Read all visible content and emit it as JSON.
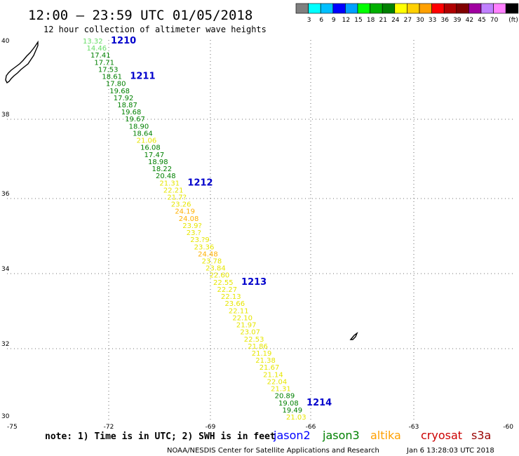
{
  "header": {
    "title": "12:00 – 23:59 UTC 01/05/2018",
    "subtitle": "12 hour collection of altimeter wave heights"
  },
  "legend": {
    "colors": [
      "#7f7f7f",
      "#00ffff",
      "#00bfff",
      "#0000ff",
      "#00a0ff",
      "#00ff00",
      "#00b000",
      "#008000",
      "#ffff00",
      "#ffd000",
      "#ffa000",
      "#ff0000",
      "#b00000",
      "#800000",
      "#a000a0",
      "#c080ff",
      "#ff80ff",
      "#000000"
    ],
    "labels": [
      "3",
      "6",
      "9",
      "12",
      "15",
      "18",
      "21",
      "24",
      "27",
      "30",
      "33",
      "36",
      "39",
      "42",
      "45",
      "70"
    ],
    "unit": "(ft)"
  },
  "map": {
    "lat_ticks": [
      "40",
      "38",
      "36",
      "34",
      "32",
      "30"
    ],
    "lon_ticks": [
      "-75",
      "-72",
      "-69",
      "-66",
      "-63",
      "-60"
    ],
    "lat_range": [
      30,
      40
    ],
    "lon_range": [
      -75,
      -60
    ],
    "grid": "dotted"
  },
  "track": {
    "markers": [
      {
        "label": "1210",
        "color": "#0000cc"
      },
      {
        "label": "1211",
        "color": "#0000cc"
      },
      {
        "label": "1212",
        "color": "#0000cc"
      },
      {
        "label": "1213",
        "color": "#0000cc"
      },
      {
        "label": "1214",
        "color": "#0000cc"
      }
    ],
    "points": [
      {
        "v": "13.32",
        "c": "#66dd66"
      },
      {
        "v": "14.46",
        "c": "#66dd66"
      },
      {
        "v": "17.41",
        "c": "#008000"
      },
      {
        "v": "17.71",
        "c": "#008000"
      },
      {
        "v": "17.53",
        "c": "#008000"
      },
      {
        "v": "18.61",
        "c": "#008000"
      },
      {
        "v": "17.80",
        "c": "#008000"
      },
      {
        "v": "19.68",
        "c": "#008000"
      },
      {
        "v": "17.92",
        "c": "#008000"
      },
      {
        "v": "18.87",
        "c": "#008000"
      },
      {
        "v": "19.68",
        "c": "#008000"
      },
      {
        "v": "19.67",
        "c": "#008000"
      },
      {
        "v": "18.90",
        "c": "#008000"
      },
      {
        "v": "18.64",
        "c": "#008000"
      },
      {
        "v": "21.06",
        "c": "#e6e600"
      },
      {
        "v": "16.08",
        "c": "#008000"
      },
      {
        "v": "17.47",
        "c": "#008000"
      },
      {
        "v": "18.98",
        "c": "#008000"
      },
      {
        "v": "18.22",
        "c": "#008000"
      },
      {
        "v": "20.48",
        "c": "#008000"
      },
      {
        "v": "21.31",
        "c": "#e6e600"
      },
      {
        "v": "22.21",
        "c": "#e6e600"
      },
      {
        "v": "21.7?",
        "c": "#e6e600"
      },
      {
        "v": "23.26",
        "c": "#e6e600"
      },
      {
        "v": "24.19",
        "c": "#ffb000"
      },
      {
        "v": "24.08",
        "c": "#ffb000"
      },
      {
        "v": "23.9?",
        "c": "#e6e600"
      },
      {
        "v": "23.?",
        "c": "#e6e600"
      },
      {
        "v": "23.?9",
        "c": "#e6e600"
      },
      {
        "v": "23.36",
        "c": "#e6e600"
      },
      {
        "v": "24.48",
        "c": "#ffb000"
      },
      {
        "v": "23.78",
        "c": "#e6e600"
      },
      {
        "v": "23.84",
        "c": "#e6e600"
      },
      {
        "v": "22.60",
        "c": "#e6e600"
      },
      {
        "v": "22.55",
        "c": "#e6e600"
      },
      {
        "v": "22.27",
        "c": "#e6e600"
      },
      {
        "v": "22.13",
        "c": "#e6e600"
      },
      {
        "v": "23.66",
        "c": "#e6e600"
      },
      {
        "v": "22.11",
        "c": "#e6e600"
      },
      {
        "v": "22.10",
        "c": "#e6e600"
      },
      {
        "v": "21.97",
        "c": "#e6e600"
      },
      {
        "v": "23.07",
        "c": "#e6e600"
      },
      {
        "v": "22.53",
        "c": "#e6e600"
      },
      {
        "v": "21.86",
        "c": "#e6e600"
      },
      {
        "v": "21.19",
        "c": "#e6e600"
      },
      {
        "v": "21.38",
        "c": "#e6e600"
      },
      {
        "v": "21.67",
        "c": "#e6e600"
      },
      {
        "v": "21.14",
        "c": "#e6e600"
      },
      {
        "v": "22.04",
        "c": "#e6e600"
      },
      {
        "v": "21.31",
        "c": "#e6e600"
      },
      {
        "v": "20.89",
        "c": "#008000"
      },
      {
        "v": "19.08",
        "c": "#008000"
      },
      {
        "v": "19.49",
        "c": "#008000"
      },
      {
        "v": "21.03",
        "c": "#e6e600"
      }
    ]
  },
  "footer": {
    "note": "note: 1) Time is in UTC; 2) SWH is in feet",
    "credit": "NOAA/NESDIS Center for Satellite Applications and Research",
    "timestamp": "Jan  6 13:28:03 UTC 2018",
    "satellites": [
      {
        "name": "jason2",
        "color": "#0000ff"
      },
      {
        "name": "jason3",
        "color": "#008000"
      },
      {
        "name": "altika",
        "color": "#ffa000"
      },
      {
        "name": "cryosat",
        "color": "#cc0000"
      },
      {
        "name": "s3a",
        "color": "#990000"
      }
    ]
  }
}
